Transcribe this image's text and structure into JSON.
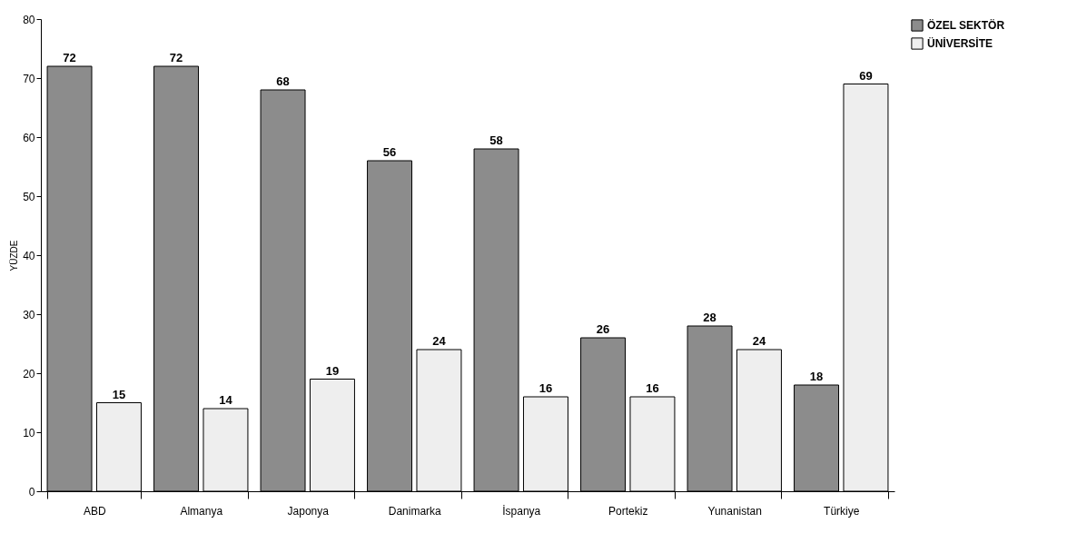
{
  "chart_data": {
    "type": "bar",
    "ylabel": "YÜZDE",
    "categories": [
      "ABD",
      "Almanya",
      "Japonya",
      "Danimarka",
      "İspanya",
      "Portekiz",
      "Yunanistan",
      "Türkiye"
    ],
    "series": [
      {
        "name": "ÖZEL SEKTÖR",
        "color": "#8c8c8c",
        "values": [
          72,
          72,
          68,
          56,
          58,
          26,
          28,
          18
        ]
      },
      {
        "name": "ÜNİVERSİTE",
        "color": "#eeeeee",
        "values": [
          15,
          14,
          19,
          24,
          16,
          16,
          24,
          69
        ]
      }
    ],
    "ylim": [
      0,
      80
    ],
    "yticks": [
      0,
      10,
      20,
      30,
      40,
      50,
      60,
      70,
      80
    ],
    "data_labels": true,
    "legend": "right"
  }
}
